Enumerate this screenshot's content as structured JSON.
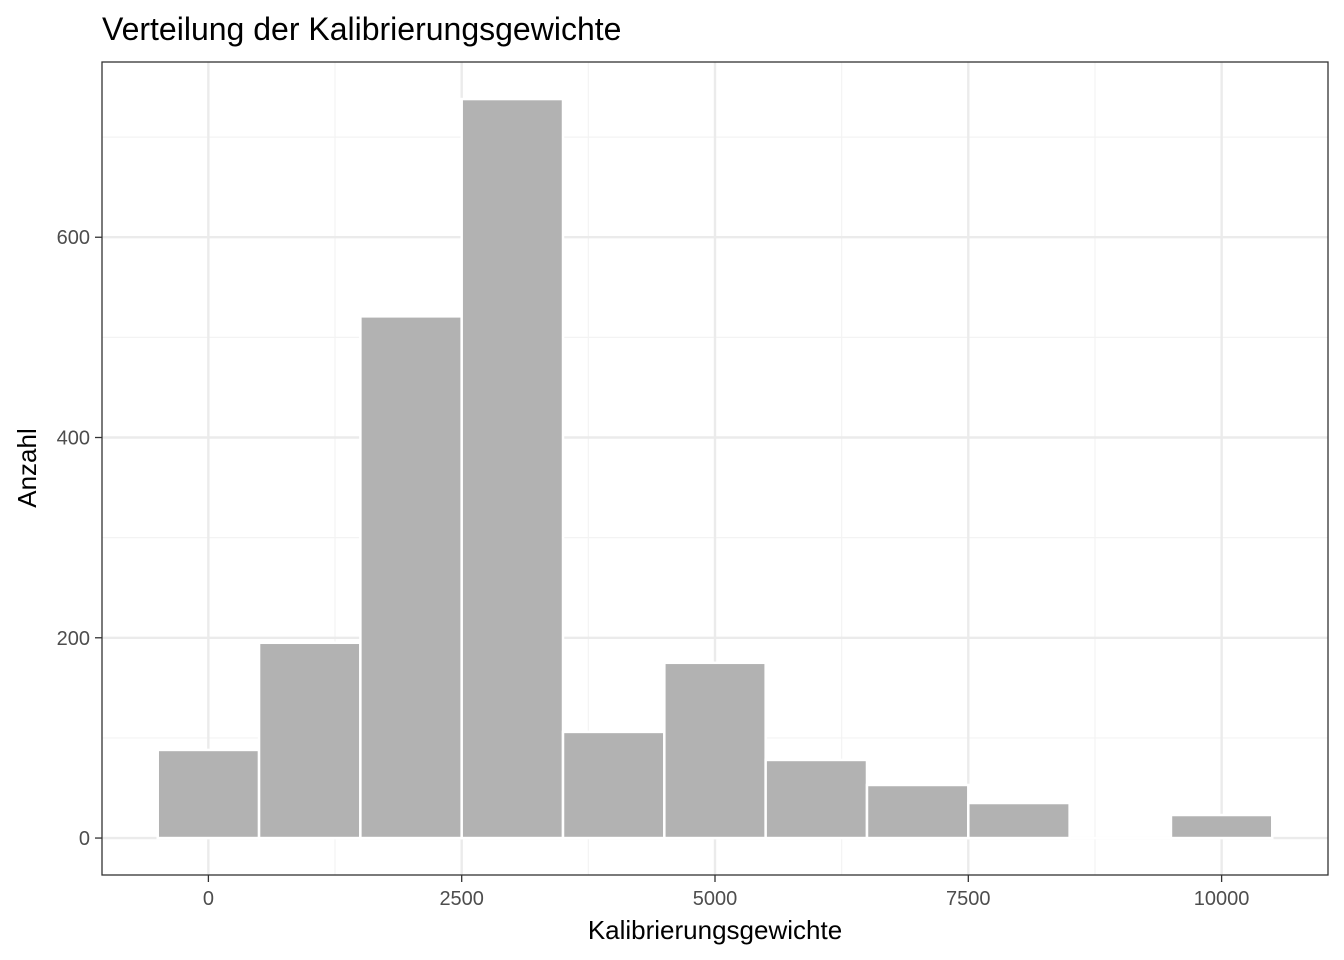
{
  "chart_data": {
    "type": "bar",
    "title": "Verteilung der Kalibrierungsgewichte",
    "xlabel": "Kalibrierungsgewichte",
    "ylabel": "Anzahl",
    "bin_width": 1000,
    "bins": [
      {
        "x_start": -500,
        "x_end": 500,
        "count": 88
      },
      {
        "x_start": 500,
        "x_end": 1500,
        "count": 195
      },
      {
        "x_start": 1500,
        "x_end": 2500,
        "count": 521
      },
      {
        "x_start": 2500,
        "x_end": 3500,
        "count": 738
      },
      {
        "x_start": 3500,
        "x_end": 4500,
        "count": 106
      },
      {
        "x_start": 4500,
        "x_end": 5500,
        "count": 175
      },
      {
        "x_start": 5500,
        "x_end": 6500,
        "count": 78
      },
      {
        "x_start": 6500,
        "x_end": 7500,
        "count": 53
      },
      {
        "x_start": 7500,
        "x_end": 8500,
        "count": 35
      },
      {
        "x_start": 8500,
        "x_end": 9500,
        "count": 0
      },
      {
        "x_start": 9500,
        "x_end": 10500,
        "count": 23
      }
    ],
    "xlim": [
      -1050,
      11050
    ],
    "ylim": [
      -36.9,
      775
    ],
    "x_ticks": [
      0,
      2500,
      5000,
      7500,
      10000
    ],
    "x_tick_labels": [
      "0",
      "2500",
      "5000",
      "7500",
      "10000"
    ],
    "y_ticks": [
      0,
      200,
      400,
      600
    ],
    "y_tick_labels": [
      "0",
      "200",
      "400",
      "600"
    ],
    "grid": true,
    "legend": "none",
    "colors": {
      "bar_fill": "#b2b2b2",
      "bar_edge": "#ffffff",
      "grid_major": "#ebebeb",
      "grid_minor": "#f3f3f3",
      "panel_border": "#333333",
      "tick_text": "#4d4d4d"
    }
  }
}
